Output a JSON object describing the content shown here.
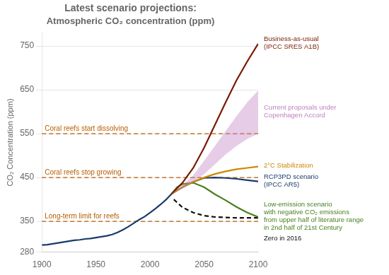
{
  "chart_data": {
    "type": "line",
    "title": "Latest scenario projections:",
    "subtitle": "Atmospheric CO₂ concentration (ppm)",
    "y_label": "CO₂ Concentration (ppm)",
    "xlim": [
      1900,
      2100
    ],
    "ylim": [
      280,
      780
    ],
    "xticks": [
      1900,
      1950,
      2000,
      2050,
      2100
    ],
    "yticks": [
      280,
      350,
      450,
      550,
      650,
      750
    ],
    "grid": "y",
    "hlines": [
      {
        "y": 550,
        "label": "Coral reefs start dissolving",
        "color": "#b85c00",
        "line_style": "dashed"
      },
      {
        "y": 450,
        "label": "Coral reefs stop growing",
        "color": "#b85c00",
        "line_style": "dashed"
      },
      {
        "y": 350,
        "label": "Long-term limit for reefs",
        "color": "#b85c00",
        "line_style": "dashed"
      }
    ],
    "series": [
      {
        "color": "#1a3a6b",
        "x": [
          1900,
          1905,
          1910,
          1915,
          1920,
          1925,
          1930,
          1935,
          1940,
          1945,
          1950,
          1955,
          1960,
          1965,
          1970,
          1975,
          1980,
          1985,
          1990,
          1995,
          2000,
          2005,
          2010,
          2015,
          2020
        ],
        "values": [
          296,
          297,
          299,
          301,
          303,
          305,
          307,
          308,
          310,
          311,
          313,
          315,
          317,
          320,
          325,
          331,
          338,
          346,
          354,
          361,
          370,
          379,
          389,
          400,
          413
        ]
      },
      {
        "type": "band",
        "name": "Current proposals under\nCopenhagen Accord",
        "color": "#c080c0",
        "x": [
          2020,
          2030,
          2040,
          2050,
          2060,
          2070,
          2080,
          2090,
          2100
        ],
        "lower": [
          413,
          425,
          440,
          458,
          480,
          503,
          522,
          538,
          550
        ],
        "upper": [
          413,
          432,
          455,
          488,
          522,
          556,
          590,
          622,
          648
        ]
      },
      {
        "name": "Business-as-usual\n(IPCC SRES A1B)",
        "color": "#7a1a00",
        "x": [
          2020,
          2030,
          2040,
          2050,
          2060,
          2070,
          2080,
          2090,
          2100
        ],
        "values": [
          413,
          438,
          472,
          518,
          570,
          622,
          672,
          715,
          755
        ]
      },
      {
        "name": "2°C Stabilization",
        "color": "#cc8800",
        "x": [
          2020,
          2030,
          2040,
          2050,
          2060,
          2070,
          2080,
          2090,
          2100
        ],
        "values": [
          413,
          428,
          440,
          450,
          458,
          464,
          469,
          472,
          475
        ]
      },
      {
        "name": "RCP3PD scenario\n(IPCC AR5)",
        "color": "#1a3a6b",
        "x": [
          2020,
          2030,
          2040,
          2050,
          2060,
          2070,
          2080,
          2090,
          2100
        ],
        "values": [
          413,
          428,
          440,
          449,
          450,
          449,
          447,
          444,
          441
        ]
      },
      {
        "name": "Low-emission scenario\nwith negative CO₂ emissions\nfrom upper half of literature range\nin 2nd half of 21st Century",
        "color": "#4a8020",
        "x": [
          2020,
          2025,
          2030,
          2040,
          2050,
          2060,
          2070,
          2080,
          2090,
          2100
        ],
        "values": [
          413,
          428,
          435,
          438,
          428,
          412,
          398,
          383,
          370,
          360
        ]
      },
      {
        "name": "Zero in 2016",
        "color": "#111111",
        "line_style": "dashed",
        "x": [
          2022,
          2030,
          2040,
          2050,
          2060,
          2070,
          2080,
          2090,
          2100
        ],
        "values": [
          400,
          382,
          370,
          363,
          360,
          359,
          358,
          358,
          358
        ]
      }
    ]
  }
}
